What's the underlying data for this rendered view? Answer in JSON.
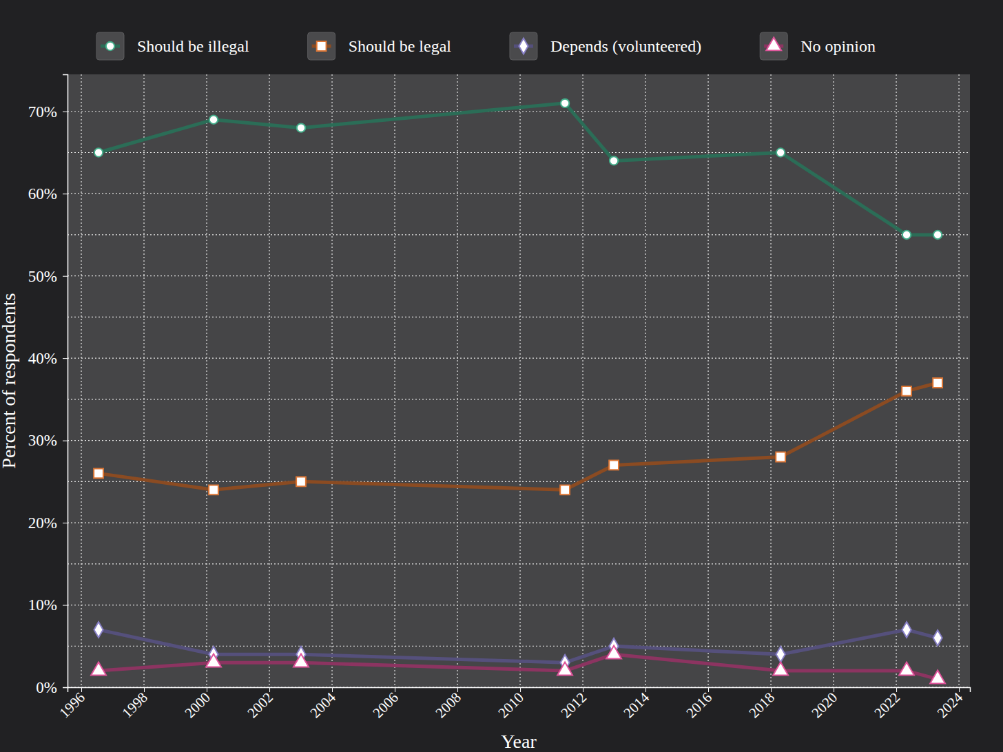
{
  "chart_data": {
    "type": "line",
    "x_label": "Year",
    "y_label": "Percent of respondents",
    "x": [
      1996.55,
      2000.22,
      2003.01,
      2011.43,
      2012.99,
      2018.31,
      2022.33,
      2023.32
    ],
    "series": [
      {
        "name": "Should be illegal",
        "color": "#2b6d57",
        "marker": "circle",
        "line_style": "solid",
        "values": [
          65,
          69,
          68,
          71,
          64,
          65,
          55,
          55
        ]
      },
      {
        "name": "Should be legal",
        "color": "#8b4b22",
        "marker": "square",
        "line_style": "solid",
        "values": [
          26,
          24,
          25,
          24,
          27,
          28,
          36,
          37
        ]
      },
      {
        "name": "Depends (volunteered)",
        "color": "#55507c",
        "marker": "diamond",
        "line_style": "solid",
        "values": [
          7,
          4,
          4,
          3,
          5,
          4,
          7,
          6
        ]
      },
      {
        "name": "No opinion",
        "color": "#8c3461",
        "marker": "triangle",
        "line_style": "solid",
        "values": [
          2,
          3,
          3,
          2,
          4,
          2,
          2,
          1
        ]
      }
    ],
    "xlim": [
      1995.56,
      2024.35
    ],
    "ylim": [
      0,
      74.5
    ],
    "xticks": [
      1996,
      1998,
      2000,
      2002,
      2004,
      2006,
      2008,
      2010,
      2012,
      2014,
      2016,
      2018,
      2020,
      2022,
      2024
    ],
    "yticks": [
      {
        "value": 0,
        "label": "0%"
      },
      {
        "value": 10,
        "label": "10%"
      },
      {
        "value": 20,
        "label": "20%"
      },
      {
        "value": 30,
        "label": "30%"
      },
      {
        "value": 40,
        "label": "40%"
      },
      {
        "value": 50,
        "label": "50%"
      },
      {
        "value": 60,
        "label": "60%"
      },
      {
        "value": 70,
        "label": "70%"
      }
    ],
    "grid": true,
    "legend": "top"
  }
}
